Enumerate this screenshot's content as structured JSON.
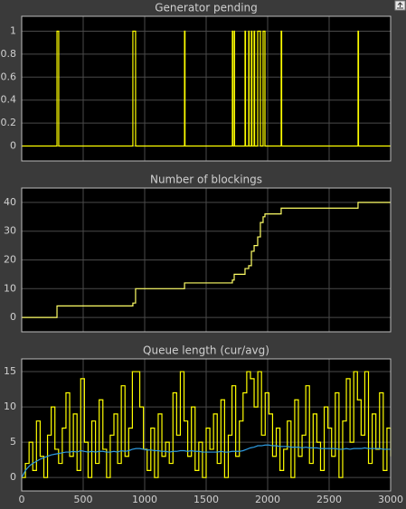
{
  "chart_data": [
    {
      "type": "line",
      "title": "Generator pending",
      "x": [
        0,
        287,
        301,
        904,
        926,
        1324,
        1328,
        1713,
        1716,
        1728,
        1731,
        1816,
        1820,
        1846,
        1849,
        1868,
        1872,
        1890,
        1894,
        1919,
        1941,
        1963,
        1978,
        2110,
        2114,
        2735,
        2739,
        3000
      ],
      "series": [
        {
          "color": "#ffff00",
          "step": "post",
          "values": [
            0,
            1,
            0,
            1,
            0,
            1,
            0,
            1,
            0,
            1,
            0,
            1,
            0,
            1,
            0,
            1,
            0,
            1,
            0,
            1,
            0,
            1,
            0,
            1,
            0,
            1,
            0,
            0
          ]
        }
      ],
      "xlim": [
        0,
        3000
      ],
      "xticks": [
        0,
        500,
        1000,
        1500,
        2000,
        2500,
        3000
      ],
      "show_xtick_labels": false,
      "ylim": [
        -0.13,
        1.13
      ],
      "yticks": [
        0,
        0.2,
        0.4,
        0.6,
        0.8,
        1
      ],
      "grid": true
    },
    {
      "type": "line",
      "title": "Number of blockings",
      "x": [
        0,
        287,
        904,
        926,
        1324,
        1713,
        1728,
        1816,
        1846,
        1868,
        1890,
        1919,
        1941,
        1963,
        1978,
        2110,
        2735,
        3000
      ],
      "series": [
        {
          "color": "#ffff66",
          "step": "post",
          "values": [
            0,
            4,
            5,
            10,
            12,
            13,
            15,
            17,
            18,
            23,
            25,
            28,
            33,
            35,
            36,
            38,
            40,
            40
          ]
        }
      ],
      "xlim": [
        0,
        3000
      ],
      "xticks": [
        0,
        500,
        1000,
        1500,
        2000,
        2500,
        3000
      ],
      "show_xtick_labels": false,
      "ylim": [
        -5,
        45
      ],
      "yticks": [
        0,
        10,
        20,
        30,
        40
      ],
      "grid": true
    },
    {
      "type": "line",
      "title": "Queue length (cur/avg)",
      "x": [
        0,
        30,
        60,
        90,
        120,
        150,
        180,
        210,
        240,
        270,
        300,
        330,
        360,
        390,
        420,
        450,
        480,
        510,
        540,
        570,
        600,
        630,
        660,
        690,
        720,
        750,
        780,
        810,
        840,
        870,
        900,
        930,
        960,
        990,
        1020,
        1050,
        1080,
        1110,
        1140,
        1170,
        1200,
        1230,
        1260,
        1290,
        1320,
        1350,
        1380,
        1410,
        1440,
        1470,
        1500,
        1530,
        1560,
        1590,
        1620,
        1650,
        1680,
        1710,
        1740,
        1770,
        1800,
        1830,
        1860,
        1890,
        1920,
        1950,
        1980,
        2010,
        2040,
        2070,
        2100,
        2130,
        2160,
        2190,
        2220,
        2250,
        2280,
        2310,
        2340,
        2370,
        2400,
        2430,
        2460,
        2490,
        2520,
        2550,
        2580,
        2610,
        2640,
        2670,
        2700,
        2730,
        2760,
        2790,
        2820,
        2850,
        2880,
        2910,
        2940,
        2970,
        3000
      ],
      "series": [
        {
          "color": "#ffff00",
          "step": "post",
          "values": [
            0,
            2,
            5,
            1,
            8,
            3,
            0,
            6,
            10,
            4,
            2,
            7,
            12,
            3,
            9,
            1,
            14,
            5,
            0,
            8,
            2,
            11,
            4,
            0,
            6,
            9,
            2,
            13,
            3,
            7,
            15,
            15,
            10,
            4,
            1,
            7,
            0,
            9,
            3,
            5,
            2,
            12,
            6,
            15,
            8,
            3,
            10,
            1,
            5,
            0,
            7,
            4,
            9,
            2,
            11,
            0,
            6,
            13,
            3,
            8,
            12,
            15,
            14,
            10,
            15,
            6,
            12,
            9,
            3,
            7,
            1,
            4,
            8,
            0,
            11,
            3,
            6,
            13,
            2,
            9,
            5,
            1,
            10,
            7,
            3,
            12,
            0,
            8,
            14,
            5,
            15,
            11,
            6,
            15,
            2,
            9,
            4,
            12,
            1,
            7,
            3
          ]
        },
        {
          "color": "#2e9be0",
          "step": "none",
          "values": [
            0,
            1,
            1.6,
            2,
            2.3,
            2.6,
            2.8,
            3,
            3.2,
            3.3,
            3.4,
            3.5,
            3.6,
            3.6,
            3.7,
            3.6,
            3.8,
            3.7,
            3.6,
            3.7,
            3.6,
            3.7,
            3.7,
            3.6,
            3.6,
            3.7,
            3.6,
            3.8,
            3.7,
            3.8,
            4.0,
            4.1,
            4.1,
            4.0,
            3.9,
            3.9,
            3.8,
            3.8,
            3.7,
            3.7,
            3.6,
            3.7,
            3.7,
            3.8,
            3.8,
            3.7,
            3.8,
            3.7,
            3.7,
            3.6,
            3.6,
            3.6,
            3.6,
            3.6,
            3.7,
            3.6,
            3.6,
            3.7,
            3.7,
            3.7,
            3.8,
            4.0,
            4.2,
            4.3,
            4.5,
            4.5,
            4.6,
            4.6,
            4.5,
            4.5,
            4.4,
            4.4,
            4.4,
            4.3,
            4.3,
            4.3,
            4.2,
            4.3,
            4.2,
            4.2,
            4.2,
            4.1,
            4.1,
            4.1,
            4.1,
            4.1,
            4.0,
            4.0,
            4.1,
            4.0,
            4.1,
            4.1,
            4.1,
            4.2,
            4.1,
            4.1,
            4.1,
            4.1,
            4.0,
            4.0,
            4.0
          ]
        }
      ],
      "xlim": [
        0,
        3000
      ],
      "xticks": [
        0,
        500,
        1000,
        1500,
        2000,
        2500,
        3000
      ],
      "show_xtick_labels": true,
      "ylim": [
        -1.9,
        16.8
      ],
      "yticks": [
        0,
        5,
        10,
        15
      ],
      "grid": true
    }
  ]
}
